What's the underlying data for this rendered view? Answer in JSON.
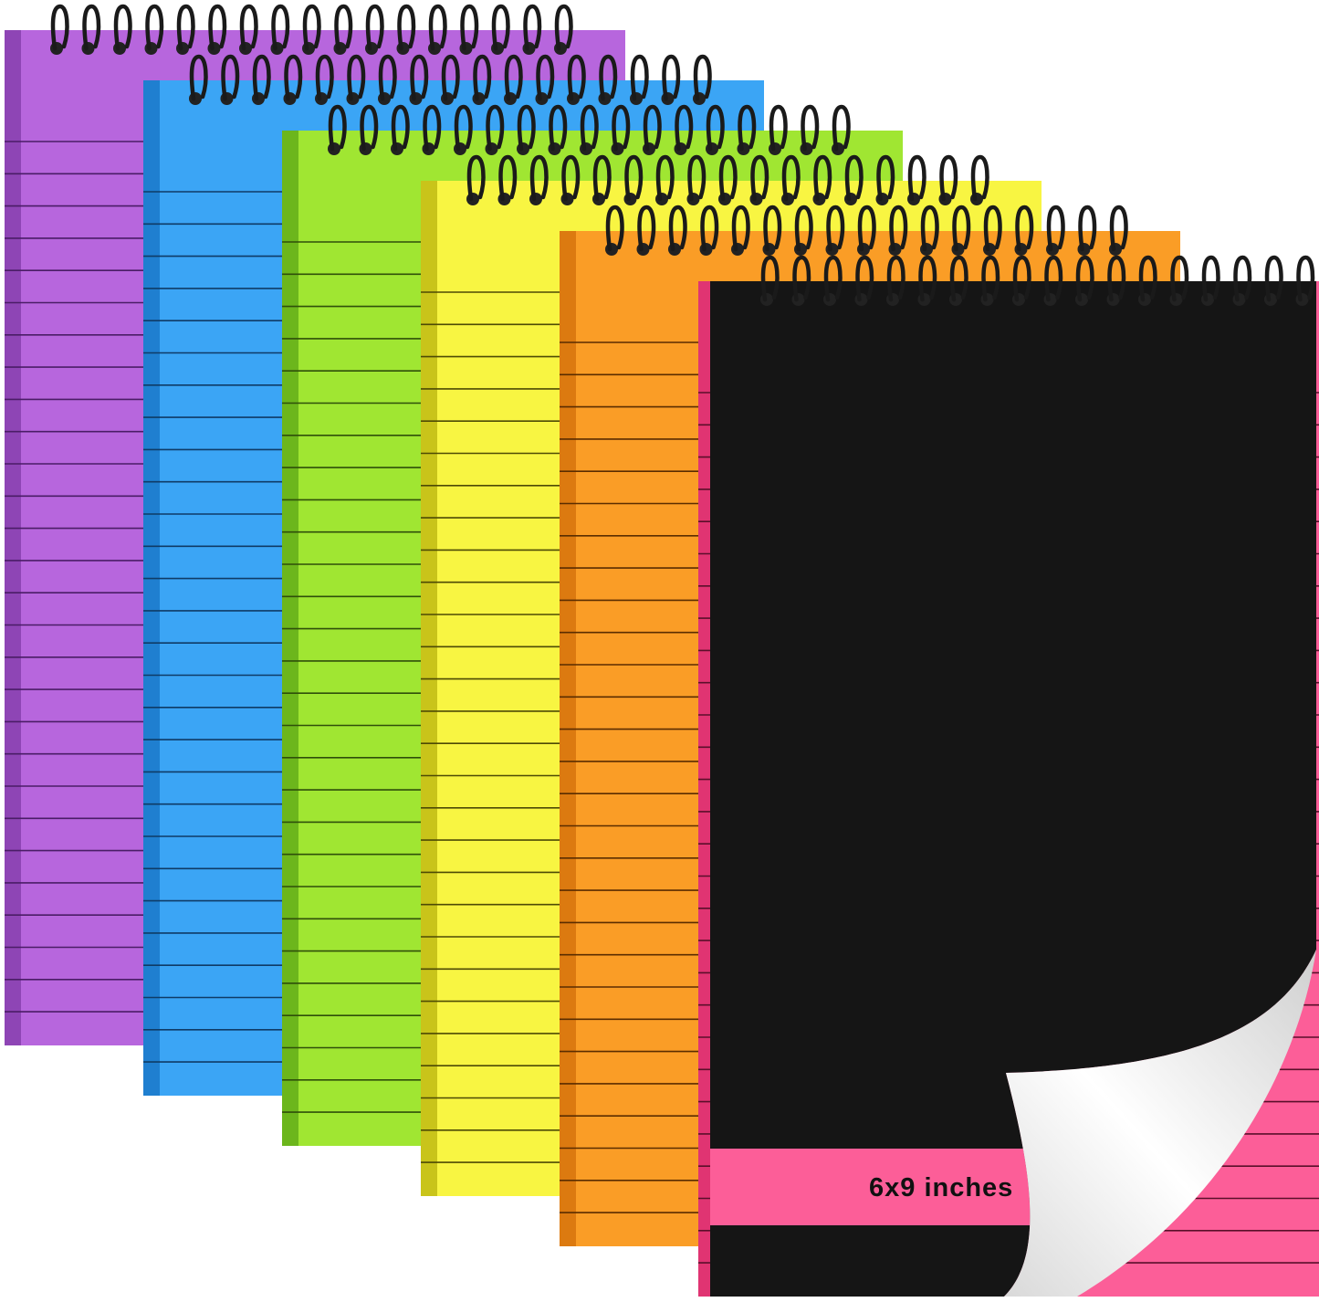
{
  "notebooks": [
    {
      "color": "#b766dd",
      "edge": "#8e45b5",
      "line": "#4a1d66"
    },
    {
      "color": "#3ba5f5",
      "edge": "#1f7fd0",
      "line": "#0f3b66"
    },
    {
      "color": "#a0e632",
      "edge": "#6cb61c",
      "line": "#2f4f0a"
    },
    {
      "color": "#f8f542",
      "edge": "#c9c41a",
      "line": "#4d4a05"
    },
    {
      "color": "#fa9d26",
      "edge": "#dc7a10",
      "line": "#5a2d00"
    },
    {
      "color": "#fc5e98",
      "edge": "#e03472",
      "line": "#5a0f2a"
    }
  ],
  "cover": {
    "color": "#151515",
    "band_color": "#fc5e98",
    "size_label": "6x9 inches",
    "page_curl": true
  },
  "spiral_color": "#1a1a1a"
}
